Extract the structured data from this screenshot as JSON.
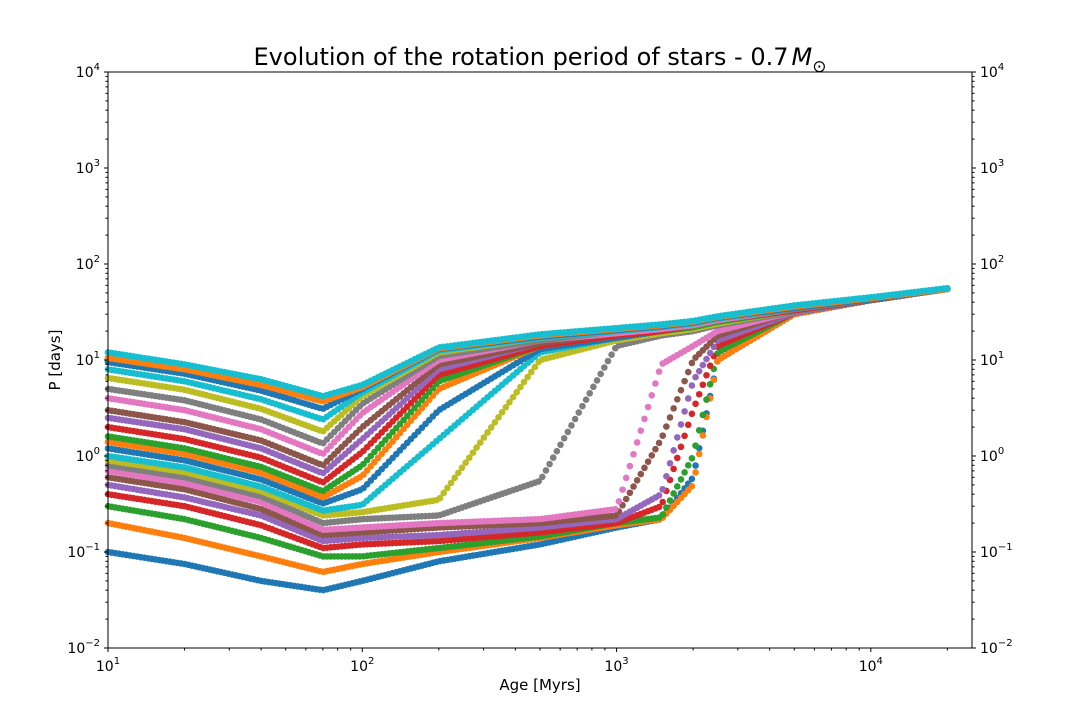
{
  "chart_data": {
    "type": "scatter",
    "title": "Evolution of the rotation period of stars - 0.7",
    "title_math": "M",
    "title_math_sub": "⊙",
    "xlabel": "Age [Myrs]",
    "ylabel": "P [days]",
    "xscale": "log",
    "yscale": "log",
    "xlim": [
      10,
      25000
    ],
    "ylim": [
      0.01,
      10000
    ],
    "x_ticks": [
      {
        "value": 10,
        "base": "10",
        "exp": "1"
      },
      {
        "value": 100,
        "base": "10",
        "exp": "2"
      },
      {
        "value": 1000,
        "base": "10",
        "exp": "3"
      },
      {
        "value": 10000,
        "base": "10",
        "exp": "4"
      }
    ],
    "y_ticks": [
      {
        "value": 0.01,
        "base": "10",
        "exp": "−2"
      },
      {
        "value": 0.1,
        "base": "10",
        "exp": "−1"
      },
      {
        "value": 1,
        "base": "10",
        "exp": "0"
      },
      {
        "value": 10,
        "base": "10",
        "exp": "1"
      },
      {
        "value": 100,
        "base": "10",
        "exp": "2"
      },
      {
        "value": 1000,
        "base": "10",
        "exp": "3"
      },
      {
        "value": 10000,
        "base": "10",
        "exp": "4"
      }
    ],
    "right_y_ticks": true,
    "grid": false,
    "legend": "none",
    "colors": [
      "#1f77b4",
      "#ff7f0e",
      "#2ca02c",
      "#d62728",
      "#9467bd",
      "#8c564b",
      "#e377c2",
      "#7f7f7f",
      "#bcbd22",
      "#17becf"
    ],
    "x_sample": [
      10,
      20,
      40,
      70,
      100,
      200,
      500,
      1000,
      1500,
      2000,
      2500,
      5000,
      10000,
      20000
    ],
    "series": [
      {
        "color": "#1f77b4",
        "y": [
          0.1,
          0.075,
          0.05,
          0.04,
          0.05,
          0.08,
          0.12,
          0.18,
          0.22,
          0.6,
          10,
          30,
          42,
          55
        ]
      },
      {
        "color": "#ff7f0e",
        "y": [
          0.2,
          0.14,
          0.09,
          0.062,
          0.075,
          0.1,
          0.14,
          0.19,
          0.22,
          0.5,
          10,
          30,
          42,
          55
        ]
      },
      {
        "color": "#2ca02c",
        "y": [
          0.3,
          0.22,
          0.14,
          0.09,
          0.09,
          0.11,
          0.145,
          0.2,
          0.23,
          1.0,
          12,
          31,
          42,
          55
        ]
      },
      {
        "color": "#d62728",
        "y": [
          0.4,
          0.3,
          0.19,
          0.11,
          0.12,
          0.13,
          0.16,
          0.2,
          0.3,
          3.0,
          14,
          31,
          42,
          55
        ]
      },
      {
        "color": "#9467bd",
        "y": [
          0.5,
          0.37,
          0.24,
          0.13,
          0.14,
          0.15,
          0.18,
          0.22,
          0.4,
          6.0,
          16,
          31,
          42,
          55
        ]
      },
      {
        "color": "#8c564b",
        "y": [
          0.6,
          0.45,
          0.28,
          0.15,
          0.16,
          0.18,
          0.2,
          0.24,
          1.5,
          10,
          18,
          32,
          42,
          55
        ]
      },
      {
        "color": "#e377c2",
        "y": [
          0.7,
          0.52,
          0.33,
          0.17,
          0.18,
          0.2,
          0.22,
          0.28,
          9.0,
          14,
          20,
          32,
          42,
          55
        ]
      },
      {
        "color": "#7f7f7f",
        "y": [
          0.8,
          0.6,
          0.38,
          0.2,
          0.22,
          0.24,
          0.55,
          14,
          18,
          20,
          23,
          32,
          42,
          55
        ]
      },
      {
        "color": "#bcbd22",
        "y": [
          0.9,
          0.68,
          0.43,
          0.24,
          0.26,
          0.35,
          10,
          16,
          19,
          21,
          24,
          33,
          42,
          55
        ]
      },
      {
        "color": "#17becf",
        "y": [
          1.0,
          0.76,
          0.48,
          0.27,
          0.31,
          1.5,
          12,
          17,
          20,
          22,
          25,
          33,
          42,
          55
        ]
      },
      {
        "color": "#1f77b4",
        "y": [
          1.2,
          0.9,
          0.57,
          0.32,
          0.45,
          3.0,
          13,
          17,
          20,
          22,
          25,
          33,
          42,
          55
        ]
      },
      {
        "color": "#ff7f0e",
        "y": [
          1.4,
          1.05,
          0.67,
          0.37,
          0.62,
          5.0,
          14,
          18,
          20,
          22,
          25,
          33,
          42,
          55
        ]
      },
      {
        "color": "#2ca02c",
        "y": [
          1.6,
          1.2,
          0.77,
          0.43,
          0.8,
          6.0,
          14,
          18,
          20,
          22,
          25,
          33,
          42,
          55
        ]
      },
      {
        "color": "#d62728",
        "y": [
          2.0,
          1.5,
          0.96,
          0.53,
          1.1,
          7.0,
          14,
          18,
          20,
          23,
          26,
          33,
          42,
          55
        ]
      },
      {
        "color": "#9467bd",
        "y": [
          2.5,
          1.9,
          1.2,
          0.66,
          1.5,
          8.0,
          15,
          19,
          21,
          23,
          26,
          34,
          42,
          55
        ]
      },
      {
        "color": "#8c564b",
        "y": [
          3.0,
          2.25,
          1.45,
          0.8,
          2.0,
          9.0,
          15,
          19,
          21,
          23,
          26,
          34,
          42,
          55
        ]
      },
      {
        "color": "#e377c2",
        "y": [
          4.0,
          3.0,
          1.9,
          1.05,
          2.8,
          10,
          16,
          19,
          21,
          23,
          26,
          34,
          43,
          55
        ]
      },
      {
        "color": "#7f7f7f",
        "y": [
          5.0,
          3.8,
          2.4,
          1.35,
          3.5,
          11,
          16,
          20,
          22,
          24,
          27,
          34,
          43,
          55
        ]
      },
      {
        "color": "#bcbd22",
        "y": [
          6.5,
          4.9,
          3.1,
          1.8,
          4.2,
          12,
          17,
          20,
          22,
          24,
          27,
          35,
          43,
          55
        ]
      },
      {
        "color": "#17becf",
        "y": [
          8.0,
          6.0,
          3.9,
          2.4,
          4.6,
          12.5,
          17,
          20,
          22,
          24,
          27,
          35,
          43,
          55
        ]
      },
      {
        "color": "#1f77b4",
        "y": [
          9.5,
          7.2,
          4.8,
          3.1,
          5.0,
          13,
          17.5,
          20.5,
          22.5,
          24.5,
          27.5,
          35,
          43,
          55
        ]
      },
      {
        "color": "#ff7f0e",
        "y": [
          10.5,
          8.0,
          5.5,
          3.7,
          5.2,
          13.2,
          18,
          21,
          23,
          25,
          28,
          36,
          44,
          55
        ]
      },
      {
        "color": "#17becf",
        "y": [
          12.0,
          9.0,
          6.3,
          4.2,
          5.5,
          13.5,
          18.5,
          21.5,
          23.5,
          25.5,
          28.5,
          37,
          45,
          56
        ]
      }
    ]
  }
}
